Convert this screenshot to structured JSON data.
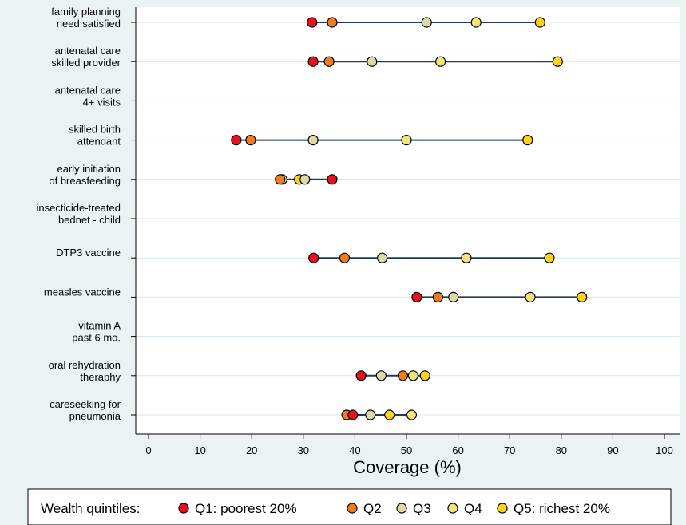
{
  "chart_data": {
    "type": "scatter",
    "xlabel": "Coverage (%)",
    "xlim": [
      0,
      100
    ],
    "xticks": [
      0,
      10,
      20,
      30,
      40,
      50,
      60,
      70,
      80,
      90,
      100
    ],
    "grid": true,
    "legend_title": "Wealth quintiles:",
    "legend_position": "bottom",
    "series": [
      {
        "name": "Q1: poorest 20%",
        "color": "#e8101a"
      },
      {
        "name": "Q2",
        "color": "#ee7d21"
      },
      {
        "name": "Q3",
        "color": "#dcd9a8"
      },
      {
        "name": "Q4",
        "color": "#f4e37c"
      },
      {
        "name": "Q5: richest 20%",
        "color": "#fdd21b"
      }
    ],
    "indicators": [
      {
        "label": [
          "family planning",
          "need satisfied"
        ],
        "values": [
          31.7,
          35.6,
          53.9,
          63.5,
          75.9
        ]
      },
      {
        "label": [
          "antenatal care",
          "skilled provider"
        ],
        "values": [
          31.9,
          35.0,
          43.3,
          56.6,
          79.3
        ]
      },
      {
        "label": [
          "antenatal care",
          "4+ visits"
        ],
        "values": []
      },
      {
        "label": [
          "skilled birth",
          "attendant"
        ],
        "values": [
          17.0,
          19.8,
          31.9,
          50.0,
          73.5
        ]
      },
      {
        "label": [
          "early initiation",
          "of breasfeeding"
        ],
        "values": [
          35.6,
          25.5,
          30.3,
          25.9,
          29.2
        ]
      },
      {
        "label": [
          "insecticide-treated",
          "bednet - child"
        ],
        "values": []
      },
      {
        "label": [
          "DTP3 vaccine"
        ],
        "values": [
          32.0,
          38.0,
          45.3,
          61.6,
          77.7
        ]
      },
      {
        "label": [
          "measles vaccine"
        ],
        "values": [
          52.0,
          56.1,
          59.1,
          74.0,
          84.0
        ]
      },
      {
        "label": [
          "vitamin A",
          "past 6 mo."
        ],
        "values": []
      },
      {
        "label": [
          "oral rehydration",
          "theraphy"
        ],
        "values": [
          41.2,
          49.3,
          45.1,
          51.3,
          53.6
        ]
      },
      {
        "label": [
          "careseeking for",
          "pneumonia"
        ],
        "values": [
          39.6,
          38.4,
          43.0,
          51.0,
          46.7
        ]
      }
    ]
  }
}
